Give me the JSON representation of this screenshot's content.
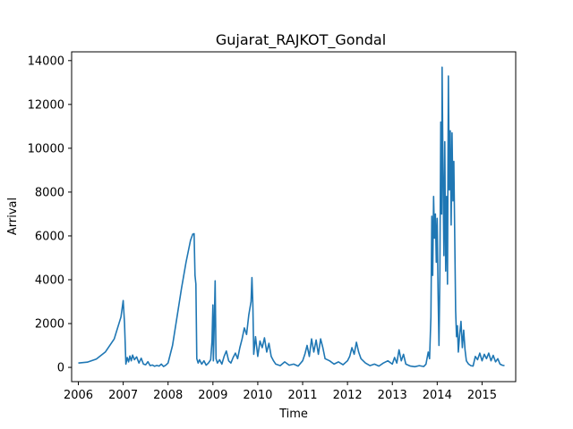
{
  "chart_data": {
    "type": "line",
    "title": "Gujarat_RAJKOT_Gondal",
    "xlabel": "Time",
    "ylabel": "Arrival",
    "xlim": [
      2005.85,
      2015.75
    ],
    "ylim": [
      -650,
      14400
    ],
    "x_ticks": [
      2006,
      2007,
      2008,
      2009,
      2010,
      2011,
      2012,
      2013,
      2014,
      2015
    ],
    "y_ticks": [
      0,
      2000,
      4000,
      6000,
      8000,
      10000,
      12000,
      14000
    ],
    "grid": false,
    "legend": "none",
    "series": [
      {
        "color": "#1f77b4",
        "points": [
          [
            2006.0,
            200
          ],
          [
            2006.2,
            240
          ],
          [
            2006.4,
            380
          ],
          [
            2006.6,
            700
          ],
          [
            2006.8,
            1300
          ],
          [
            2006.95,
            2300
          ],
          [
            2007.0,
            3050
          ],
          [
            2007.03,
            2000
          ],
          [
            2007.06,
            150
          ],
          [
            2007.09,
            450
          ],
          [
            2007.12,
            250
          ],
          [
            2007.15,
            520
          ],
          [
            2007.18,
            300
          ],
          [
            2007.21,
            560
          ],
          [
            2007.25,
            350
          ],
          [
            2007.3,
            480
          ],
          [
            2007.35,
            200
          ],
          [
            2007.4,
            420
          ],
          [
            2007.45,
            150
          ],
          [
            2007.5,
            120
          ],
          [
            2007.55,
            260
          ],
          [
            2007.6,
            80
          ],
          [
            2007.65,
            110
          ],
          [
            2007.7,
            50
          ],
          [
            2007.75,
            90
          ],
          [
            2007.8,
            60
          ],
          [
            2007.85,
            150
          ],
          [
            2007.9,
            40
          ],
          [
            2007.95,
            100
          ],
          [
            2008.0,
            200
          ],
          [
            2008.1,
            1000
          ],
          [
            2008.2,
            2300
          ],
          [
            2008.3,
            3600
          ],
          [
            2008.4,
            4800
          ],
          [
            2008.5,
            5800
          ],
          [
            2008.55,
            6080
          ],
          [
            2008.58,
            6100
          ],
          [
            2008.6,
            4200
          ],
          [
            2008.62,
            3800
          ],
          [
            2008.64,
            400
          ],
          [
            2008.67,
            200
          ],
          [
            2008.7,
            350
          ],
          [
            2008.75,
            150
          ],
          [
            2008.8,
            300
          ],
          [
            2008.85,
            100
          ],
          [
            2008.9,
            200
          ],
          [
            2008.95,
            350
          ],
          [
            2008.98,
            1200
          ],
          [
            2009.0,
            2850
          ],
          [
            2009.01,
            300
          ],
          [
            2009.03,
            1900
          ],
          [
            2009.05,
            3950
          ],
          [
            2009.07,
            400
          ],
          [
            2009.1,
            200
          ],
          [
            2009.15,
            350
          ],
          [
            2009.2,
            150
          ],
          [
            2009.25,
            500
          ],
          [
            2009.3,
            750
          ],
          [
            2009.35,
            300
          ],
          [
            2009.4,
            200
          ],
          [
            2009.45,
            450
          ],
          [
            2009.5,
            650
          ],
          [
            2009.55,
            400
          ],
          [
            2009.6,
            900
          ],
          [
            2009.65,
            1300
          ],
          [
            2009.7,
            1800
          ],
          [
            2009.75,
            1500
          ],
          [
            2009.8,
            2400
          ],
          [
            2009.85,
            3000
          ],
          [
            2009.87,
            4100
          ],
          [
            2009.89,
            2900
          ],
          [
            2009.91,
            600
          ],
          [
            2009.95,
            1400
          ],
          [
            2010.0,
            500
          ],
          [
            2010.05,
            1200
          ],
          [
            2010.1,
            900
          ],
          [
            2010.15,
            1350
          ],
          [
            2010.2,
            700
          ],
          [
            2010.25,
            1100
          ],
          [
            2010.3,
            500
          ],
          [
            2010.35,
            300
          ],
          [
            2010.4,
            150
          ],
          [
            2010.5,
            80
          ],
          [
            2010.6,
            250
          ],
          [
            2010.7,
            100
          ],
          [
            2010.8,
            150
          ],
          [
            2010.9,
            60
          ],
          [
            2011.0,
            300
          ],
          [
            2011.05,
            600
          ],
          [
            2011.1,
            1000
          ],
          [
            2011.15,
            500
          ],
          [
            2011.2,
            1300
          ],
          [
            2011.25,
            700
          ],
          [
            2011.3,
            1250
          ],
          [
            2011.35,
            600
          ],
          [
            2011.4,
            1300
          ],
          [
            2011.45,
            900
          ],
          [
            2011.5,
            400
          ],
          [
            2011.6,
            300
          ],
          [
            2011.7,
            150
          ],
          [
            2011.8,
            250
          ],
          [
            2011.9,
            120
          ],
          [
            2012.0,
            300
          ],
          [
            2012.05,
            500
          ],
          [
            2012.1,
            900
          ],
          [
            2012.15,
            600
          ],
          [
            2012.2,
            1150
          ],
          [
            2012.25,
            700
          ],
          [
            2012.3,
            400
          ],
          [
            2012.4,
            200
          ],
          [
            2012.5,
            80
          ],
          [
            2012.6,
            150
          ],
          [
            2012.7,
            60
          ],
          [
            2012.8,
            200
          ],
          [
            2012.9,
            300
          ],
          [
            2013.0,
            150
          ],
          [
            2013.05,
            450
          ],
          [
            2013.1,
            200
          ],
          [
            2013.15,
            800
          ],
          [
            2013.2,
            300
          ],
          [
            2013.25,
            600
          ],
          [
            2013.3,
            150
          ],
          [
            2013.4,
            60
          ],
          [
            2013.5,
            30
          ],
          [
            2013.6,
            80
          ],
          [
            2013.7,
            40
          ],
          [
            2013.75,
            150
          ],
          [
            2013.8,
            700
          ],
          [
            2013.83,
            400
          ],
          [
            2013.86,
            2300
          ],
          [
            2013.88,
            6900
          ],
          [
            2013.9,
            4200
          ],
          [
            2013.92,
            7800
          ],
          [
            2013.94,
            5900
          ],
          [
            2013.96,
            7000
          ],
          [
            2013.98,
            4800
          ],
          [
            2014.0,
            6800
          ],
          [
            2014.02,
            3400
          ],
          [
            2014.04,
            1000
          ],
          [
            2014.06,
            4200
          ],
          [
            2014.08,
            11200
          ],
          [
            2014.1,
            7000
          ],
          [
            2014.11,
            13700
          ],
          [
            2014.13,
            9000
          ],
          [
            2014.15,
            5100
          ],
          [
            2014.17,
            10300
          ],
          [
            2014.19,
            4400
          ],
          [
            2014.21,
            7800
          ],
          [
            2014.23,
            3800
          ],
          [
            2014.25,
            13300
          ],
          [
            2014.27,
            8100
          ],
          [
            2014.29,
            10800
          ],
          [
            2014.31,
            6500
          ],
          [
            2014.33,
            10700
          ],
          [
            2014.35,
            7600
          ],
          [
            2014.37,
            9400
          ],
          [
            2014.39,
            6000
          ],
          [
            2014.41,
            2600
          ],
          [
            2014.43,
            1400
          ],
          [
            2014.45,
            1900
          ],
          [
            2014.47,
            700
          ],
          [
            2014.5,
            1500
          ],
          [
            2014.53,
            2100
          ],
          [
            2014.56,
            900
          ],
          [
            2014.59,
            1700
          ],
          [
            2014.62,
            800
          ],
          [
            2014.65,
            300
          ],
          [
            2014.7,
            150
          ],
          [
            2014.75,
            80
          ],
          [
            2014.8,
            60
          ],
          [
            2014.85,
            500
          ],
          [
            2014.9,
            350
          ],
          [
            2014.95,
            650
          ],
          [
            2015.0,
            300
          ],
          [
            2015.05,
            600
          ],
          [
            2015.1,
            400
          ],
          [
            2015.15,
            650
          ],
          [
            2015.2,
            300
          ],
          [
            2015.25,
            550
          ],
          [
            2015.3,
            250
          ],
          [
            2015.35,
            400
          ],
          [
            2015.4,
            150
          ],
          [
            2015.45,
            100
          ],
          [
            2015.5,
            80
          ]
        ]
      }
    ]
  }
}
